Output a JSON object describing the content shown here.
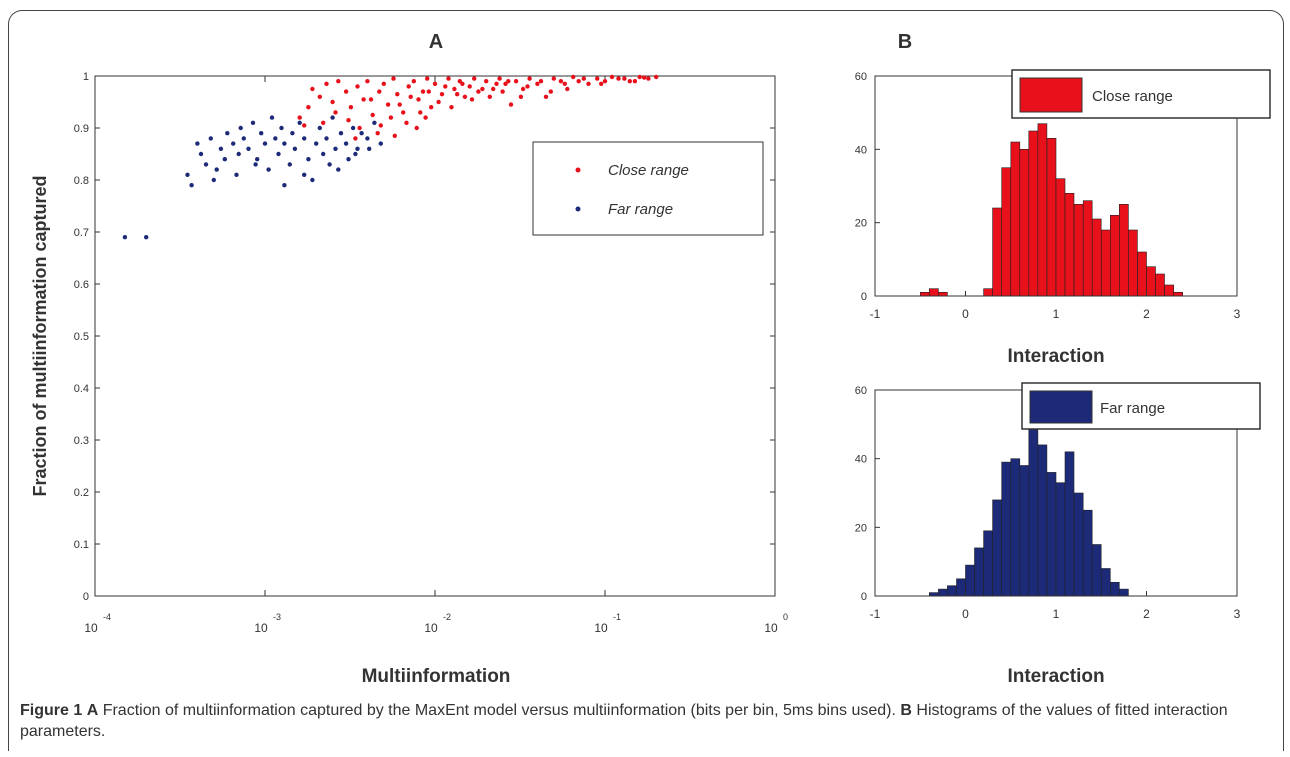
{
  "caption": {
    "figure_label": "Figure 1",
    "part_a_label": "A",
    "part_a_text": " Fraction of multiinformation captured by the MaxEnt model versus multiinformation (bits per bin, 5ms bins used). ",
    "part_b_label": "B",
    "part_b_text": " Histograms of the values of fitted interaction parameters."
  },
  "colors": {
    "close": "#e8101a",
    "far": "#1c2a78",
    "axis": "#333333"
  },
  "chart_data": [
    {
      "type": "scatter",
      "panel_label": "A",
      "xlabel": "Multiinformation",
      "ylabel": "Fraction of multiinformation captured",
      "xscale": "log",
      "xlim": [
        0.0001,
        1
      ],
      "ylim": [
        0,
        1
      ],
      "x_tick_bases": [
        "10",
        "10",
        "10",
        "10",
        "10"
      ],
      "x_tick_exponents": [
        "-4",
        "-3",
        "-2",
        "-1",
        "0"
      ],
      "y_ticks": [
        "0",
        "0.1",
        "0.2",
        "0.3",
        "0.4",
        "0.5",
        "0.6",
        "0.7",
        "0.8",
        "0.9",
        "1"
      ],
      "legend": {
        "position": "right",
        "entries": [
          "Close range",
          "Far range"
        ]
      },
      "series": [
        {
          "name": "Close range",
          "points": [
            [
              0.0019,
              0.975
            ],
            [
              0.0021,
              0.96
            ],
            [
              0.0023,
              0.985
            ],
            [
              0.0025,
              0.95
            ],
            [
              0.0027,
              0.99
            ],
            [
              0.003,
              0.97
            ],
            [
              0.0032,
              0.94
            ],
            [
              0.0035,
              0.98
            ],
            [
              0.0038,
              0.955
            ],
            [
              0.004,
              0.99
            ],
            [
              0.0043,
              0.925
            ],
            [
              0.0047,
              0.97
            ],
            [
              0.005,
              0.985
            ],
            [
              0.0053,
              0.945
            ],
            [
              0.0057,
              0.995
            ],
            [
              0.006,
              0.965
            ],
            [
              0.0065,
              0.93
            ],
            [
              0.007,
              0.98
            ],
            [
              0.0075,
              0.99
            ],
            [
              0.008,
              0.955
            ],
            [
              0.0085,
              0.97
            ],
            [
              0.009,
              0.995
            ],
            [
              0.0095,
              0.94
            ],
            [
              0.01,
              0.985
            ],
            [
              0.011,
              0.965
            ],
            [
              0.012,
              0.995
            ],
            [
              0.013,
              0.975
            ],
            [
              0.014,
              0.99
            ],
            [
              0.015,
              0.96
            ],
            [
              0.016,
              0.98
            ],
            [
              0.017,
              0.995
            ],
            [
              0.018,
              0.97
            ],
            [
              0.02,
              0.99
            ],
            [
              0.022,
              0.975
            ],
            [
              0.024,
              0.995
            ],
            [
              0.026,
              0.985
            ],
            [
              0.028,
              0.945
            ],
            [
              0.03,
              0.99
            ],
            [
              0.033,
              0.975
            ],
            [
              0.036,
              0.995
            ],
            [
              0.04,
              0.985
            ],
            [
              0.045,
              0.96
            ],
            [
              0.05,
              0.995
            ],
            [
              0.055,
              0.99
            ],
            [
              0.06,
              0.975
            ],
            [
              0.065,
              0.998
            ],
            [
              0.07,
              0.99
            ],
            [
              0.08,
              0.985
            ],
            [
              0.09,
              0.995
            ],
            [
              0.1,
              0.99
            ],
            [
              0.11,
              0.998
            ],
            [
              0.12,
              0.995
            ],
            [
              0.14,
              0.99
            ],
            [
              0.16,
              0.998
            ],
            [
              0.18,
              0.995
            ],
            [
              0.2,
              0.998
            ],
            [
              0.0016,
              0.92
            ],
            [
              0.0017,
              0.905
            ],
            [
              0.0018,
              0.94
            ],
            [
              0.0022,
              0.91
            ],
            [
              0.0026,
              0.93
            ],
            [
              0.0031,
              0.915
            ],
            [
              0.0036,
              0.9
            ],
            [
              0.0042,
              0.955
            ],
            [
              0.0048,
              0.905
            ],
            [
              0.0055,
              0.92
            ],
            [
              0.0062,
              0.945
            ],
            [
              0.0068,
              0.91
            ],
            [
              0.0072,
              0.96
            ],
            [
              0.0082,
              0.93
            ],
            [
              0.0092,
              0.97
            ],
            [
              0.0105,
              0.95
            ],
            [
              0.0115,
              0.98
            ],
            [
              0.0125,
              0.94
            ],
            [
              0.0135,
              0.965
            ],
            [
              0.0145,
              0.985
            ],
            [
              0.0165,
              0.955
            ],
            [
              0.019,
              0.975
            ],
            [
              0.021,
              0.96
            ],
            [
              0.023,
              0.985
            ],
            [
              0.025,
              0.97
            ],
            [
              0.027,
              0.99
            ],
            [
              0.032,
              0.96
            ],
            [
              0.035,
              0.98
            ],
            [
              0.042,
              0.99
            ],
            [
              0.048,
              0.97
            ],
            [
              0.058,
              0.985
            ],
            [
              0.075,
              0.995
            ],
            [
              0.095,
              0.985
            ],
            [
              0.13,
              0.995
            ],
            [
              0.15,
              0.99
            ],
            [
              0.17,
              0.997
            ],
            [
              0.0034,
              0.88
            ],
            [
              0.0046,
              0.89
            ],
            [
              0.0058,
              0.885
            ],
            [
              0.0078,
              0.9
            ],
            [
              0.0088,
              0.92
            ]
          ]
        },
        {
          "name": "Far range",
          "points": [
            [
              0.00015,
              0.69
            ],
            [
              0.0002,
              0.69
            ],
            [
              0.00035,
              0.81
            ],
            [
              0.00037,
              0.79
            ],
            [
              0.0004,
              0.87
            ],
            [
              0.00042,
              0.85
            ],
            [
              0.00045,
              0.83
            ],
            [
              0.00048,
              0.88
            ],
            [
              0.0005,
              0.8
            ],
            [
              0.00055,
              0.86
            ],
            [
              0.00058,
              0.84
            ],
            [
              0.0006,
              0.89
            ],
            [
              0.00065,
              0.87
            ],
            [
              0.0007,
              0.85
            ],
            [
              0.00072,
              0.9
            ],
            [
              0.00075,
              0.88
            ],
            [
              0.0008,
              0.86
            ],
            [
              0.00085,
              0.91
            ],
            [
              0.0009,
              0.84
            ],
            [
              0.00095,
              0.89
            ],
            [
              0.001,
              0.87
            ],
            [
              0.00105,
              0.82
            ],
            [
              0.0011,
              0.92
            ],
            [
              0.00115,
              0.88
            ],
            [
              0.0012,
              0.85
            ],
            [
              0.00125,
              0.9
            ],
            [
              0.0013,
              0.87
            ],
            [
              0.0014,
              0.83
            ],
            [
              0.00145,
              0.89
            ],
            [
              0.0015,
              0.86
            ],
            [
              0.0016,
              0.91
            ],
            [
              0.0017,
              0.88
            ],
            [
              0.0018,
              0.84
            ],
            [
              0.0019,
              0.8
            ],
            [
              0.002,
              0.87
            ],
            [
              0.0021,
              0.9
            ],
            [
              0.0022,
              0.85
            ],
            [
              0.0023,
              0.88
            ],
            [
              0.0024,
              0.83
            ],
            [
              0.0025,
              0.92
            ],
            [
              0.0026,
              0.86
            ],
            [
              0.0028,
              0.89
            ],
            [
              0.003,
              0.87
            ],
            [
              0.0031,
              0.84
            ],
            [
              0.0033,
              0.9
            ],
            [
              0.0035,
              0.86
            ],
            [
              0.0037,
              0.89
            ],
            [
              0.004,
              0.88
            ],
            [
              0.0044,
              0.91
            ],
            [
              0.0048,
              0.87
            ],
            [
              0.00052,
              0.82
            ],
            [
              0.00068,
              0.81
            ],
            [
              0.00088,
              0.83
            ],
            [
              0.0013,
              0.79
            ],
            [
              0.0017,
              0.81
            ],
            [
              0.0027,
              0.82
            ],
            [
              0.0034,
              0.85
            ],
            [
              0.0041,
              0.86
            ]
          ]
        }
      ]
    },
    {
      "type": "bar",
      "panel_label": "B",
      "xlabel": "Interaction",
      "xlim": [
        -1,
        3
      ],
      "ylim": [
        0,
        60
      ],
      "x_ticks": [
        "-1",
        "0",
        "1",
        "2",
        "3"
      ],
      "y_ticks": [
        "0",
        "20",
        "40",
        "60"
      ],
      "bin_start": -0.5,
      "bin_width": 0.1,
      "legend": {
        "position": "top-right",
        "entries": [
          "Close range"
        ]
      },
      "series": [
        {
          "name": "Close range",
          "values": [
            1,
            2,
            1,
            0,
            0,
            0,
            0,
            2,
            24,
            35,
            42,
            40,
            45,
            47,
            43,
            32,
            28,
            25,
            26,
            21,
            18,
            22,
            25,
            18,
            12,
            8,
            6,
            3,
            1
          ]
        }
      ]
    },
    {
      "type": "bar",
      "xlabel": "Interaction",
      "xlim": [
        -1,
        3
      ],
      "ylim": [
        0,
        60
      ],
      "x_ticks": [
        "-1",
        "0",
        "1",
        "2",
        "3"
      ],
      "y_ticks": [
        "0",
        "20",
        "40",
        "60"
      ],
      "bin_start": -0.4,
      "bin_width": 0.1,
      "legend": {
        "position": "top-right",
        "entries": [
          "Far range"
        ]
      },
      "series": [
        {
          "name": "Far range",
          "values": [
            1,
            2,
            3,
            5,
            9,
            14,
            19,
            28,
            39,
            40,
            38,
            49,
            44,
            36,
            33,
            42,
            30,
            25,
            15,
            8,
            4,
            2
          ]
        }
      ]
    }
  ]
}
